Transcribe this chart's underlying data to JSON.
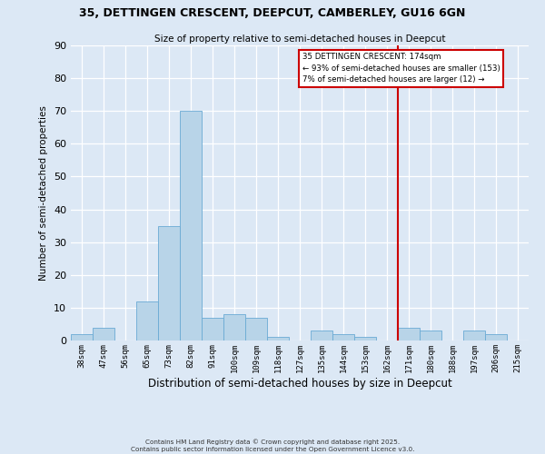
{
  "title": "35, DETTINGEN CRESCENT, DEEPCUT, CAMBERLEY, GU16 6GN",
  "subtitle": "Size of property relative to semi-detached houses in Deepcut",
  "xlabel": "Distribution of semi-detached houses by size in Deepcut",
  "ylabel": "Number of semi-detached properties",
  "bin_labels": [
    "38sqm",
    "47sqm",
    "56sqm",
    "65sqm",
    "73sqm",
    "82sqm",
    "91sqm",
    "100sqm",
    "109sqm",
    "118sqm",
    "127sqm",
    "135sqm",
    "144sqm",
    "153sqm",
    "162sqm",
    "171sqm",
    "180sqm",
    "188sqm",
    "197sqm",
    "206sqm",
    "215sqm"
  ],
  "bar_heights": [
    2,
    4,
    0,
    12,
    35,
    70,
    7,
    8,
    7,
    1,
    0,
    3,
    2,
    1,
    0,
    4,
    3,
    0,
    3,
    2,
    0
  ],
  "bar_color": "#b8d4e8",
  "bar_edge_color": "#6aaad4",
  "ylim": [
    0,
    90
  ],
  "yticks": [
    0,
    10,
    20,
    30,
    40,
    50,
    60,
    70,
    80,
    90
  ],
  "vline_x": 15,
  "vline_color": "#cc0000",
  "annotation_title": "35 DETTINGEN CRESCENT: 174sqm",
  "annotation_line1": "← 93% of semi-detached houses are smaller (153)",
  "annotation_line2": "7% of semi-detached houses are larger (12) →",
  "bg_color": "#dce8f5",
  "footnote1": "Contains HM Land Registry data © Crown copyright and database right 2025.",
  "footnote2": "Contains public sector information licensed under the Open Government Licence v3.0."
}
